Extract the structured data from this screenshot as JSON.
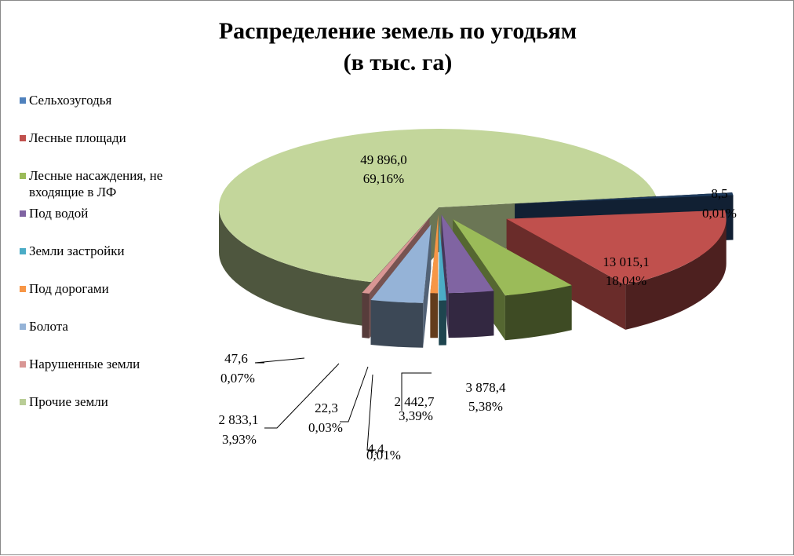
{
  "chart_data": {
    "type": "pie",
    "title_line1": "Распределение земель по угодьям",
    "title_line2": "(в тыс. га)",
    "legend_position": "left",
    "slices": [
      {
        "name": "Сельхозугодья",
        "value_label": "8,5",
        "percent_label": "0,01%",
        "value": 8.5,
        "percent": 0.01,
        "color": "#1f3b5c",
        "legend_color": "#4f81bd"
      },
      {
        "name": "Лесные площади",
        "value_label": "13 015,1",
        "percent_label": "18,04%",
        "value": 13015.1,
        "percent": 18.04,
        "color": "#c0504d",
        "legend_color": "#c0504d"
      },
      {
        "name": "Лесные насаждения, не входящие в ЛФ",
        "value_label": "3 878,4",
        "percent_label": "5,38%",
        "value": 3878.4,
        "percent": 5.38,
        "color": "#9bbb59",
        "legend_color": "#9bbb59"
      },
      {
        "name": "Под водой",
        "value_label": "2 442,7",
        "percent_label": "3,39%",
        "value": 2442.7,
        "percent": 3.39,
        "color": "#8064a2",
        "legend_color": "#8064a2"
      },
      {
        "name": "Земли застройки",
        "value_label": "4,4",
        "percent_label": "0,01%",
        "value": 4.4,
        "percent": 0.01,
        "color": "#4bacc6",
        "legend_color": "#4bacc6"
      },
      {
        "name": "Под дорогами",
        "value_label": "22,3",
        "percent_label": "0,03%",
        "value": 22.3,
        "percent": 0.03,
        "color": "#f79646",
        "legend_color": "#f79646"
      },
      {
        "name": "Болота",
        "value_label": "2 833,1",
        "percent_label": "3,93%",
        "value": 2833.1,
        "percent": 3.93,
        "color": "#95b3d7",
        "legend_color": "#95b3d7"
      },
      {
        "name": "Нарушенные земли",
        "value_label": "47,6",
        "percent_label": "0,07%",
        "value": 47.6,
        "percent": 0.07,
        "color": "#d99694",
        "legend_color": "#d99694"
      },
      {
        "name": "Прочие земли",
        "value_label": "49 896,0",
        "percent_label": "69,16%",
        "value": 49896.0,
        "percent": 69.16,
        "color": "#c3d69b",
        "legend_color": "#b9cd96"
      }
    ]
  }
}
